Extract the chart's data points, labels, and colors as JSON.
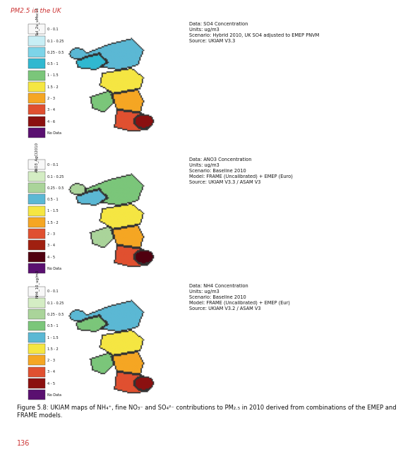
{
  "page_bg": "#ffffff",
  "header_text": "PM2.5 in the UK",
  "header_color": "#cc3333",
  "header_fontsize": 6.5,
  "page_number": "136",
  "page_number_color": "#cc3333",
  "page_number_fontsize": 7,
  "figure_caption_bold": "Figure 5.8:",
  "figure_caption_rest": " UKIAM maps of NH₄⁺, fine NO₃⁻ and SO₄²⁻ contributions to PM₂.₅ in 2010 derived from combinations of the EMEP and\nFRAME models.",
  "caption_fontsize": 6.0,
  "map1_legend_title": "NH4_10_ug/m3",
  "map1_legend_items": [
    {
      "label": "0 - 0.1",
      "color": "#f8f8f8"
    },
    {
      "label": "0.1 - 0.25",
      "color": "#d4edc4"
    },
    {
      "label": "0.25 - 0.5",
      "color": "#aad49a"
    },
    {
      "label": "0.5 - 1",
      "color": "#7bc67a"
    },
    {
      "label": "1 - 1.5",
      "color": "#5bb8d4"
    },
    {
      "label": "1.5 - 2",
      "color": "#f5e642"
    },
    {
      "label": "2 - 3",
      "color": "#f5a623"
    },
    {
      "label": "3 - 4",
      "color": "#e05030"
    },
    {
      "label": "4 - 5",
      "color": "#8b1010"
    },
    {
      "label": "No Data",
      "color": "#5a1070"
    }
  ],
  "map1_data_label": "Data: NH4 Concentration\nUnits: ug/m3\nScenario: Baseline 2010\nModel: FRAME (Uncalibrated) + EMEP (Eur)\nSource: UKIAM V3.2 / ASAM V3",
  "map2_legend_title": "ANO3_AgCl2010",
  "map2_legend_items": [
    {
      "label": "0 - 0.1",
      "color": "#f8f8f8"
    },
    {
      "label": "0.1 - 0.25",
      "color": "#d4edc4"
    },
    {
      "label": "0.25 - 0.5",
      "color": "#aad49a"
    },
    {
      "label": "0.5 - 1",
      "color": "#5bb8d4"
    },
    {
      "label": "1 - 1.5",
      "color": "#f5e642"
    },
    {
      "label": "1.5 - 2",
      "color": "#f5a623"
    },
    {
      "label": "2 - 3",
      "color": "#e05030"
    },
    {
      "label": "3 - 4",
      "color": "#a02010"
    },
    {
      "label": "4 - 5",
      "color": "#500010"
    },
    {
      "label": "No Data",
      "color": "#5a1070"
    }
  ],
  "map2_data_label": "Data: ANO3 Concentration\nUnits: ug/m3\nScenario: Baseline 2010\nModel: FRAME (Uncalibrated) + EMEP (Euro)\nSource: UKIAM V3.3 / ASAM V3",
  "map3_legend_title": "Sul_2u_uMsc10",
  "map3_legend_items": [
    {
      "label": "0 - 0.1",
      "color": "#f8f8f8"
    },
    {
      "label": "0.1 - 0.25",
      "color": "#c8eef5"
    },
    {
      "label": "0.25 - 0.5",
      "color": "#7dd4e8"
    },
    {
      "label": "0.5 - 1",
      "color": "#30b8d0"
    },
    {
      "label": "1 - 1.5",
      "color": "#7bc67a"
    },
    {
      "label": "1.5 - 2",
      "color": "#f5e642"
    },
    {
      "label": "2 - 3",
      "color": "#f5a623"
    },
    {
      "label": "3 - 4",
      "color": "#e05030"
    },
    {
      "label": "4 - 6",
      "color": "#8b1010"
    },
    {
      "label": "No Data",
      "color": "#5a1070"
    }
  ],
  "map3_data_label": "Data: SO4 Concentration\nUnits: ug/m3\nScenario: Hybrid 2010, UK SO4 adjusted to EMEP PNVM\nSource: UKIAM V3.3",
  "text_fontsize": 4.8
}
